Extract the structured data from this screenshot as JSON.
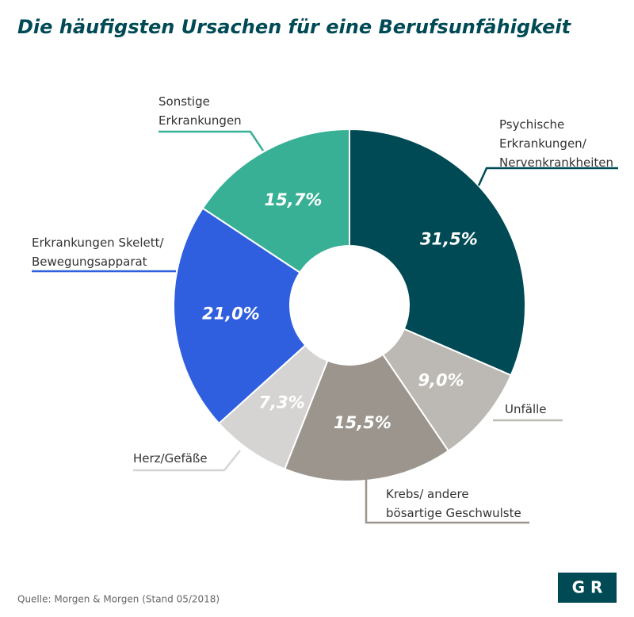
{
  "chart_data": {
    "type": "donut",
    "title": "Die häufigsten Ursachen für eine Berufsunfähigkeit",
    "categories": [
      "Psychische\nErkrankungen/\nNervenkrankheiten",
      "Unfälle",
      "Krebs/ andere\nbösartige Geschwulste",
      "Herz/Gefäße",
      "Erkrankungen Skelett/\nBewegungsapparat",
      "Sonstige\nErkrankungen"
    ],
    "values": [
      31.5,
      9.0,
      15.5,
      7.3,
      21.0,
      15.7
    ],
    "value_labels": [
      "31,5%",
      "9,0%",
      "15,5%",
      "7,3%",
      "21,0%",
      "15,7%"
    ],
    "colors": [
      "#004a55",
      "#bcb9b4",
      "#9b958e",
      "#d6d4d2",
      "#2f5fdf",
      "#37b095"
    ],
    "source": "Quelle: Morgen & Morgen (Stand 05/2018)",
    "logo": "G R"
  }
}
